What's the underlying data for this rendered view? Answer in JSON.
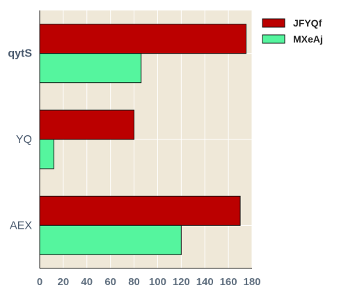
{
  "chart_data": {
    "type": "bar",
    "orientation": "horizontal",
    "categories": [
      "qytS",
      "YQ",
      "AEX"
    ],
    "category_label_styles": [
      {
        "color": "#4a5a6e",
        "bold": true
      },
      {
        "color": "#4a5a6e",
        "bold": false
      },
      {
        "color": "#4a5a6e",
        "bold": false
      }
    ],
    "series": [
      {
        "name": "JFYQf",
        "color": "#bb0000",
        "values": [
          175,
          80,
          170
        ]
      },
      {
        "name": "MXeAj",
        "color": "#55f59e",
        "values": [
          86,
          12,
          120
        ]
      }
    ],
    "xlim": [
      0,
      180
    ],
    "xticks": [
      0,
      20,
      40,
      60,
      80,
      100,
      120,
      140,
      160,
      180
    ],
    "grid": true,
    "plot_background": "#efe8d8",
    "grid_color": "#ffffff",
    "legend_position": "top-right"
  }
}
